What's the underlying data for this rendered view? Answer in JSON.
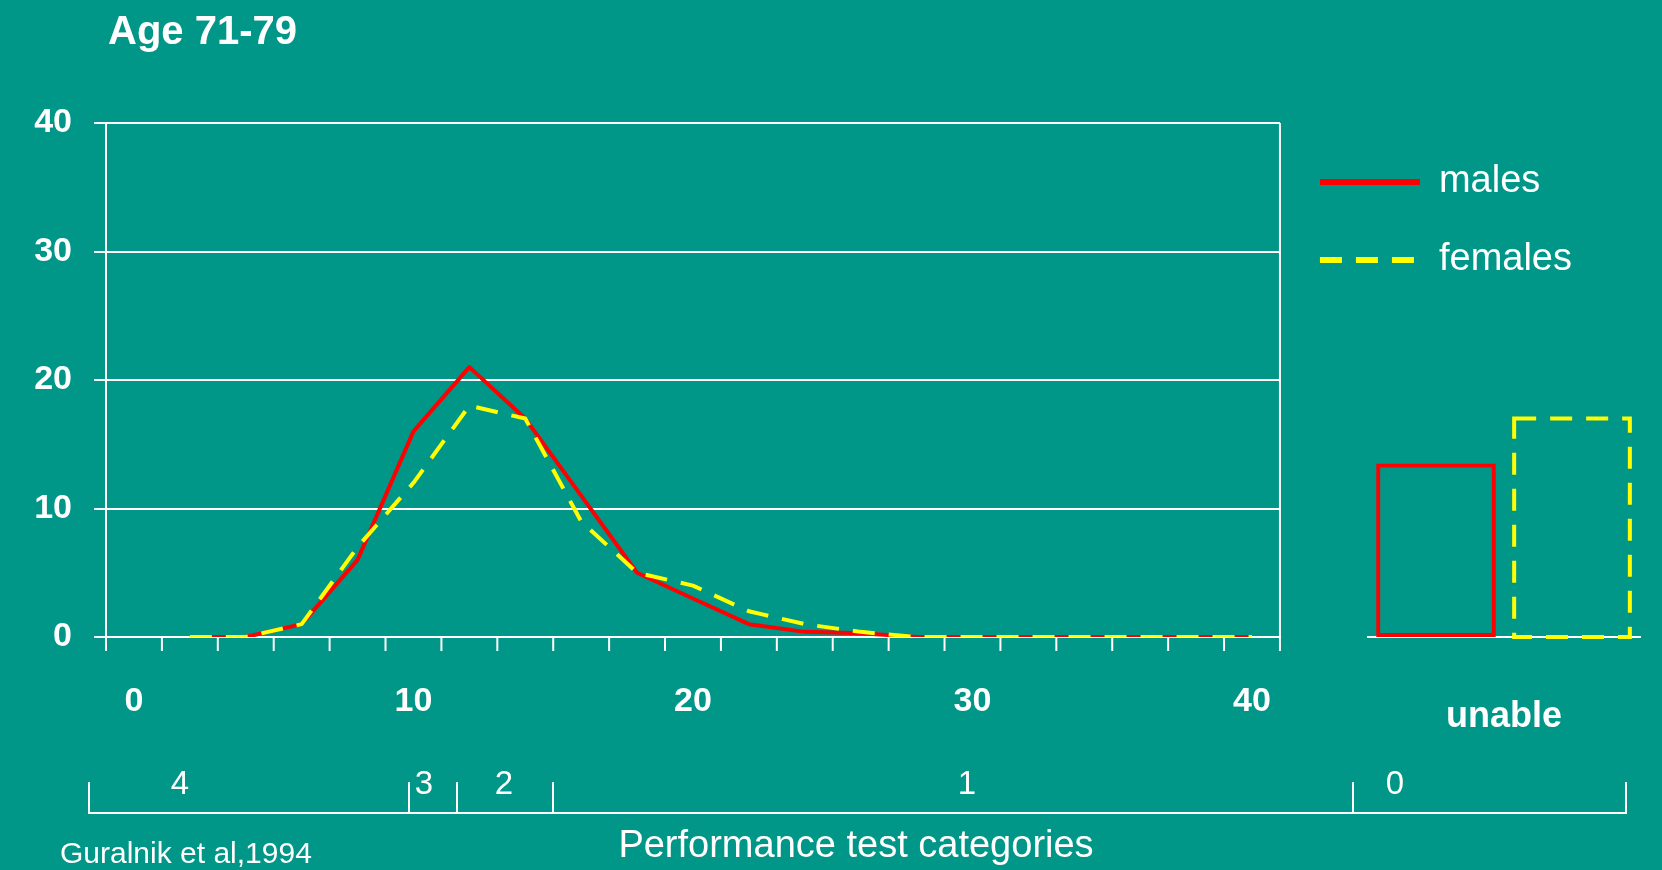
{
  "chart_data": [
    {
      "type": "line",
      "title": "Age 71-79",
      "xlabel": "Performance test categories",
      "x": [
        2,
        4,
        6,
        8,
        10,
        12,
        14,
        16,
        18,
        20,
        22,
        24,
        26,
        28,
        30,
        32,
        34,
        36,
        38,
        40
      ],
      "series": [
        {
          "name": "males",
          "color": "#ff0000",
          "line_style": "solid",
          "values": [
            0,
            0,
            1,
            6,
            16,
            21,
            17,
            11,
            5,
            3,
            1,
            0.4,
            0.3,
            0,
            0,
            0,
            0,
            0,
            0,
            0
          ]
        },
        {
          "name": "females",
          "color": "#ffff00",
          "line_style": "dashed",
          "values": [
            0,
            0,
            1,
            7,
            12,
            18,
            17,
            9,
            5,
            4,
            2,
            1,
            0.4,
            0,
            0,
            0,
            0,
            0,
            0,
            0
          ]
        }
      ],
      "xlim": [
        -1,
        41
      ],
      "xticks": [
        {
          "value": -1,
          "label": null
        },
        0,
        {
          "value": 1,
          "label": null
        },
        {
          "value": 3,
          "label": null
        },
        {
          "value": 5,
          "label": null
        },
        {
          "value": 7,
          "label": null
        },
        {
          "value": 9,
          "label": null
        },
        10,
        {
          "value": 11,
          "label": null
        },
        {
          "value": 13,
          "label": null
        },
        {
          "value": 15,
          "label": null
        },
        {
          "value": 17,
          "label": null
        },
        {
          "value": 19,
          "label": null
        },
        20,
        {
          "value": 21,
          "label": null
        },
        {
          "value": 23,
          "label": null
        },
        {
          "value": 25,
          "label": null
        },
        {
          "value": 27,
          "label": null
        },
        {
          "value": 29,
          "label": null
        },
        30,
        {
          "value": 31,
          "label": null
        },
        {
          "value": 33,
          "label": null
        },
        {
          "value": 35,
          "label": null
        },
        {
          "value": 37,
          "label": null
        },
        {
          "value": 39,
          "label": null
        },
        40,
        {
          "value": 41,
          "label": null
        }
      ],
      "ylim": [
        0,
        40
      ],
      "yticks": [
        0,
        10,
        20,
        30,
        40
      ],
      "grid": "y",
      "legend": "right",
      "marker": "none",
      "annotations": [
        "4",
        "3",
        "2",
        "1",
        "0",
        "Guralnik et al,1994"
      ]
    },
    {
      "type": "bar",
      "categories": [
        "unable"
      ],
      "series": [
        {
          "color": "#ff0000",
          "line_style": "solid",
          "values": [
            13.5
          ]
        },
        {
          "color": "#ffff00",
          "line_style": "dashed",
          "values": [
            17
          ]
        }
      ],
      "ylim": [
        0,
        40
      ],
      "tick_labels": "x"
    }
  ]
}
